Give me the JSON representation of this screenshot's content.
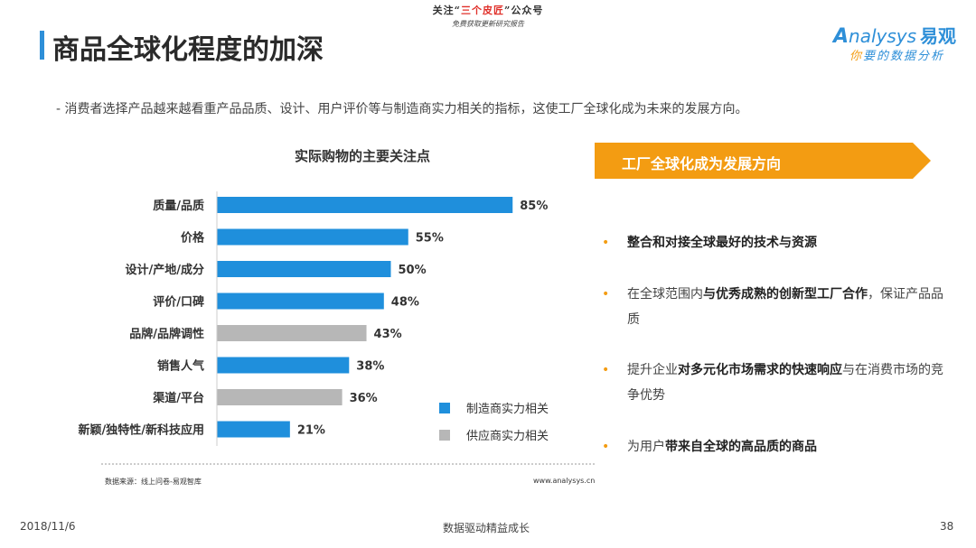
{
  "header": {
    "title": "商品全球化程度的加深",
    "top_note_line1_a": "关注“",
    "top_note_line1_highlight": "三个皮匠",
    "top_note_line1_b": "”公众号",
    "top_note_line2": "免费获取更新研究报告",
    "logo_brand_first": "A",
    "logo_brand_rest": "nalysys",
    "logo_brand_cn": "易观",
    "logo_tagline_first": "你",
    "logo_tagline_rest": "要的数据分析"
  },
  "subtitle": "-  消费者选择产品越来越看重产品品质、设计、用户评价等与制造商实力相关的指标，这使工厂全球化成为未来的发展方向。",
  "chart_data": {
    "type": "bar",
    "orientation": "horizontal",
    "title": "实际购物的主要关注点",
    "categories": [
      "质量/品质",
      "价格",
      "设计/产地/成分",
      "评价/口碑",
      "品牌/品牌调性",
      "销售人气",
      "渠道/平台",
      "新颖/独特性/新科技应用"
    ],
    "values": [
      85,
      55,
      50,
      48,
      43,
      38,
      36,
      21
    ],
    "value_labels": [
      "85%",
      "55%",
      "50%",
      "48%",
      "43%",
      "38%",
      "36%",
      "21%"
    ],
    "group": [
      "制造商实力相关",
      "制造商实力相关",
      "制造商实力相关",
      "制造商实力相关",
      "供应商实力相关",
      "制造商实力相关",
      "供应商实力相关",
      "制造商实力相关"
    ],
    "unit": "%",
    "xlim": [
      0,
      100
    ],
    "legend": [
      {
        "name": "制造商实力相关",
        "color": "#1f8fdc"
      },
      {
        "name": "供应商实力相关",
        "color": "#b7b7b7"
      }
    ],
    "legend_position": "bottom-right",
    "grid": false
  },
  "source": "数据来源：线上问卷-易观智库",
  "site": "www.analysys.cn",
  "right_panel": {
    "banner": "工厂全球化成为发展方向",
    "banner_color": "#f39c12",
    "bullet_color": "#f39c12",
    "bullets": [
      {
        "pre": "",
        "bold": "整合和对接全球最好的技术与资源",
        "post": ""
      },
      {
        "pre": "在全球范围内",
        "bold": "与优秀成熟的创新型工厂合作",
        "post": "，保证产品品质"
      },
      {
        "pre": "提升企业",
        "bold": "对多元化市场需求的快速响应",
        "post": "与在消费市场的竞争优势"
      },
      {
        "pre": "为用户",
        "bold": "带来自全球的高品质的商品",
        "post": ""
      }
    ]
  },
  "footer": {
    "date": "2018/11/6",
    "center": "数据驱动精益成长",
    "page": "38"
  }
}
